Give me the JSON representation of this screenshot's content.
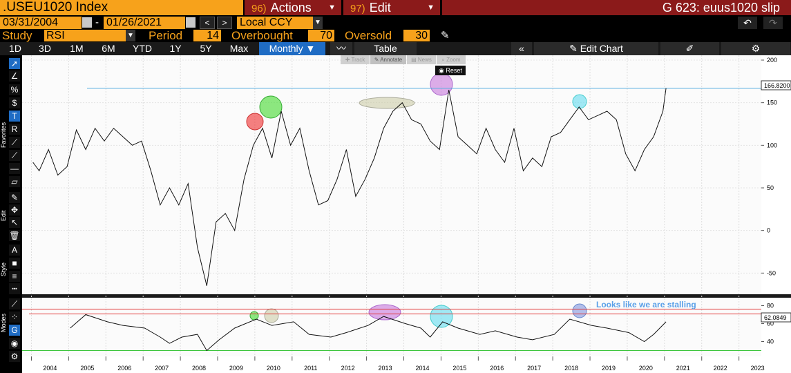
{
  "header": {
    "ticker": ".USEU1020 Index",
    "actions_num": "96)",
    "actions_label": "Actions",
    "edit_num": "97)",
    "edit_label": "Edit",
    "title": "G 623: euus1020 slip"
  },
  "dates": {
    "start": "03/31/2004",
    "end": "01/26/2021",
    "sep": "-"
  },
  "currency": "Local CCY",
  "study": {
    "label": "Study",
    "value": "RSI",
    "period_label": "Period",
    "period": "14",
    "overbought_label": "Overbought",
    "overbought": "70",
    "oversold_label": "Oversold",
    "oversold": "30"
  },
  "timeframes": [
    "1D",
    "3D",
    "1M",
    "6M",
    "YTD",
    "1Y",
    "5Y",
    "Max"
  ],
  "frequency": "Monthly",
  "toolbar": {
    "table": "Table",
    "edit_chart": "Edit Chart"
  },
  "annotate_bar": [
    "Track",
    "Annotate",
    "News",
    "Zoom"
  ],
  "reset_label": "Reset",
  "side_labels": {
    "favorites": "Favorites",
    "edit": "Edit",
    "style": "Style",
    "modes": "Modes"
  },
  "annotation_text": "Looks like we are stalling",
  "colors": {
    "orange": "#f7a21b",
    "maroon": "#8b1a1a",
    "blue": "#1f6cc4",
    "overbought_line": "#e03030",
    "oversold_line": "#3ac43a",
    "hline": "#5aaee0"
  },
  "chart_data": [
    {
      "type": "line",
      "series": [
        {
          "x": [
            "2004-01",
            "2004-03",
            "2004-06",
            "2004-09",
            "2004-12",
            "2005-03",
            "2005-06",
            "2005-09",
            "2005-12",
            "2006-03",
            "2006-06",
            "2006-09",
            "2006-12",
            "2007-03",
            "2007-06",
            "2007-09",
            "2007-12",
            "2008-03",
            "2008-06",
            "2008-09",
            "2008-12",
            "2009-03",
            "2009-06",
            "2009-09",
            "2009-12",
            "2010-03",
            "2010-06",
            "2010-09",
            "2010-12",
            "2011-03",
            "2011-06",
            "2011-09",
            "2011-12",
            "2012-03",
            "2012-06",
            "2012-09",
            "2012-12",
            "2013-03",
            "2013-06",
            "2013-09",
            "2013-12",
            "2014-03",
            "2014-06",
            "2014-09",
            "2014-12",
            "2015-03",
            "2015-06",
            "2015-09",
            "2015-12",
            "2016-03",
            "2016-06",
            "2016-09",
            "2016-12",
            "2017-03",
            "2017-06",
            "2017-09",
            "2017-12",
            "2018-03",
            "2018-06",
            "2018-09",
            "2018-12",
            "2019-03",
            "2019-06",
            "2019-09",
            "2019-12",
            "2020-03",
            "2020-06",
            "2020-09",
            "2020-12",
            "2021-01"
          ],
          "values": [
            80,
            70,
            95,
            65,
            75,
            118,
            95,
            120,
            105,
            120,
            110,
            100,
            105,
            70,
            30,
            50,
            30,
            55,
            -20,
            -65,
            10,
            20,
            0,
            60,
            100,
            120,
            85,
            140,
            100,
            120,
            70,
            30,
            35,
            60,
            95,
            40,
            60,
            85,
            120,
            140,
            150,
            130,
            125,
            105,
            95,
            165,
            110,
            100,
            90,
            120,
            95,
            80,
            120,
            70,
            85,
            75,
            110,
            115,
            130,
            145,
            130,
            135,
            140,
            130,
            90,
            70,
            95,
            110,
            140,
            167
          ]
        }
      ],
      "ylim": [
        -70,
        200
      ],
      "yticks": [
        200,
        150,
        100,
        50,
        0,
        -50
      ],
      "last_value": "166.8200",
      "hline": 166.82
    },
    {
      "type": "line",
      "series": [
        {
          "x": [
            "2005-01",
            "2005-06",
            "2006-01",
            "2006-06",
            "2007-01",
            "2007-06",
            "2007-09",
            "2008-01",
            "2008-06",
            "2008-09",
            "2009-01",
            "2009-06",
            "2010-01",
            "2010-06",
            "2011-01",
            "2011-06",
            "2012-01",
            "2012-06",
            "2013-01",
            "2013-06",
            "2014-01",
            "2014-06",
            "2014-09",
            "2015-01",
            "2015-06",
            "2016-01",
            "2016-06",
            "2017-01",
            "2017-06",
            "2018-01",
            "2018-06",
            "2019-01",
            "2019-06",
            "2020-01",
            "2020-06",
            "2020-09",
            "2021-01"
          ],
          "values": [
            55,
            70,
            62,
            58,
            55,
            45,
            38,
            45,
            48,
            30,
            42,
            55,
            65,
            58,
            62,
            48,
            45,
            50,
            58,
            68,
            60,
            55,
            45,
            62,
            55,
            48,
            52,
            45,
            42,
            48,
            65,
            58,
            55,
            50,
            40,
            48,
            62
          ]
        }
      ],
      "ylim": [
        25,
        85
      ],
      "yticks": [
        80,
        60,
        40
      ],
      "overbought": 70,
      "oversold": 30,
      "last_value": "62.0849"
    }
  ],
  "xaxis_years": [
    "2004",
    "2005",
    "2006",
    "2007",
    "2008",
    "2009",
    "2010",
    "2011",
    "2012",
    "2013",
    "2014",
    "2015",
    "2016",
    "2017",
    "2018",
    "2019",
    "2020",
    "2021",
    "2022",
    "2023"
  ]
}
